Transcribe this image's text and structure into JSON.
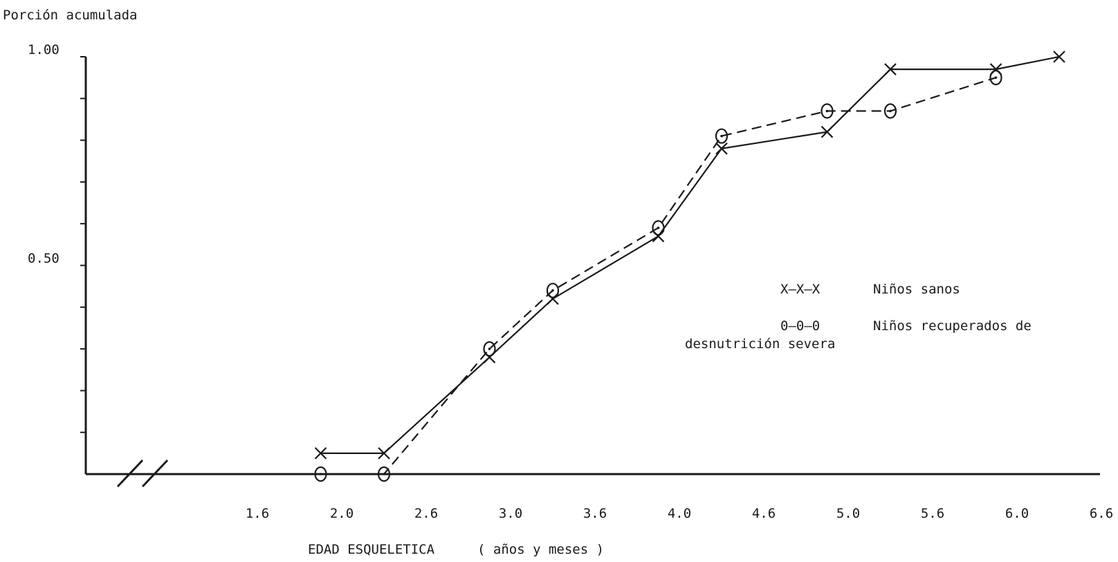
{
  "chart_data": {
    "type": "line",
    "ylabel": "Porción acumulada",
    "xlabel": "EDAD ESQUELETICA",
    "xlabel_unit": "( años y meses )",
    "x_ticks": [
      "1.6",
      "2.0",
      "2.6",
      "3.0",
      "3.6",
      "4.0",
      "4.6",
      "5.0",
      "5.6",
      "6.0",
      "6.6"
    ],
    "y_tick_labels": [
      {
        "value": 1.0,
        "label": "1.00"
      },
      {
        "value": 0.5,
        "label": "0.50"
      }
    ],
    "y_minor_ticks": [
      0.1,
      0.2,
      0.3,
      0.4,
      0.5,
      0.6,
      0.7,
      0.8,
      0.9,
      1.0
    ],
    "ylim": [
      0,
      1.0
    ],
    "axis_break": true,
    "grid": false,
    "legend_position": "center-right",
    "series": [
      {
        "name": "Niños sanos",
        "legend_symbol": "X—X—X",
        "marker": "x",
        "line_style": "solid",
        "color": "#1a1a1a",
        "points": [
          {
            "x": "1.9",
            "y": 0.05
          },
          {
            "x": "2.3",
            "y": 0.05
          },
          {
            "x": "2.9",
            "y": 0.28
          },
          {
            "x": "3.3",
            "y": 0.42
          },
          {
            "x": "3.9",
            "y": 0.57
          },
          {
            "x": "4.3",
            "y": 0.78
          },
          {
            "x": "4.9",
            "y": 0.82
          },
          {
            "x": "5.3",
            "y": 0.97
          },
          {
            "x": "5.9",
            "y": 0.97
          },
          {
            "x": "6.3",
            "y": 1.0
          }
        ]
      },
      {
        "name": "Niños recuperados de desnutrición severa",
        "legend_symbol": "0—0—0",
        "marker": "o",
        "line_style": "dashed",
        "color": "#1a1a1a",
        "points": [
          {
            "x": "1.9",
            "y": 0.0
          },
          {
            "x": "2.3",
            "y": 0.0
          },
          {
            "x": "2.9",
            "y": 0.3
          },
          {
            "x": "3.3",
            "y": 0.44
          },
          {
            "x": "3.9",
            "y": 0.59
          },
          {
            "x": "4.3",
            "y": 0.81
          },
          {
            "x": "4.9",
            "y": 0.87
          },
          {
            "x": "5.3",
            "y": 0.87
          },
          {
            "x": "5.9",
            "y": 0.95
          }
        ]
      }
    ]
  },
  "legend": {
    "sanos_symbol": "X—X—X",
    "sanos_label": "Niños sanos",
    "recup_symbol": "0—0—0",
    "recup_label_line1": "Niños recuperados de",
    "recup_label_line2": "desnutrición severa"
  }
}
